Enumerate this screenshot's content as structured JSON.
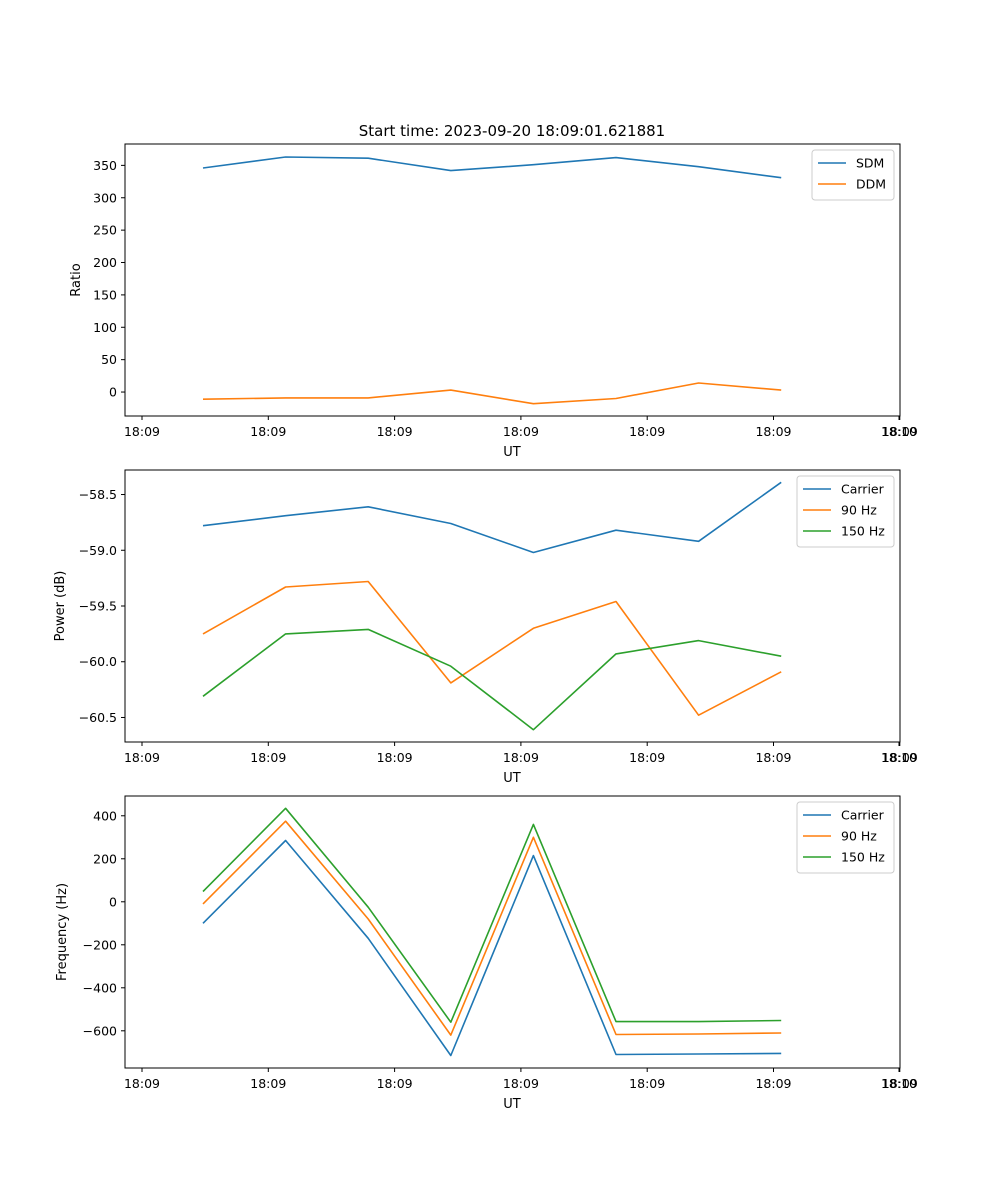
{
  "figure_title": "Start time: 2023-09-20 18:09:01.621881",
  "colors": {
    "blue": "#1f77b4",
    "orange": "#ff7f0e",
    "green": "#2ca02c"
  },
  "chart_data": [
    {
      "type": "line",
      "title": "Start time: 2023-09-20 18:09:01.621881",
      "xlabel": "UT",
      "ylabel": "Ratio",
      "x_tick_labels": [
        "18:09",
        "18:09",
        "18:09",
        "18:09",
        "18:09",
        "18:09",
        "18:09"
      ],
      "x_last_tick_label": "18:10",
      "ylim": [
        -37,
        383
      ],
      "yticks": [
        0,
        50,
        100,
        150,
        200,
        250,
        300,
        350
      ],
      "legend_position": "top-right",
      "series": [
        {
          "name": "SDM",
          "color": "#1f77b4",
          "values": [
            346,
            363,
            361,
            342,
            351,
            362,
            348,
            331
          ]
        },
        {
          "name": "DDM",
          "color": "#ff7f0e",
          "values": [
            -11,
            -9,
            -9,
            3,
            -18,
            -10,
            14,
            3
          ]
        }
      ]
    },
    {
      "type": "line",
      "title": "",
      "xlabel": "UT",
      "ylabel": "Power (dB)",
      "x_tick_labels": [
        "18:09",
        "18:09",
        "18:09",
        "18:09",
        "18:09",
        "18:09",
        "18:09"
      ],
      "x_last_tick_label": "18:10",
      "ylim": [
        -60.72,
        -58.28
      ],
      "yticks": [
        -60.5,
        -60.0,
        -59.5,
        -59.0,
        -58.5
      ],
      "ytick_labels": [
        "−60.5",
        "−60.0",
        "−59.5",
        "−59.0",
        "−58.5"
      ],
      "legend_position": "top-right",
      "series": [
        {
          "name": "Carrier",
          "color": "#1f77b4",
          "values": [
            -58.78,
            -58.69,
            -58.61,
            -58.76,
            -59.02,
            -58.82,
            -58.92,
            -58.39
          ]
        },
        {
          "name": "90 Hz",
          "color": "#ff7f0e",
          "values": [
            -59.75,
            -59.33,
            -59.28,
            -60.19,
            -59.7,
            -59.46,
            -60.48,
            -60.09
          ]
        },
        {
          "name": "150 Hz",
          "color": "#2ca02c",
          "values": [
            -60.31,
            -59.75,
            -59.71,
            -60.04,
            -60.61,
            -59.93,
            -59.81,
            -59.95
          ]
        }
      ]
    },
    {
      "type": "line",
      "title": "",
      "xlabel": "UT",
      "ylabel": "Frequency (Hz)",
      "x_tick_labels": [
        "18:09",
        "18:09",
        "18:09",
        "18:09",
        "18:09",
        "18:09",
        "18:09"
      ],
      "x_last_tick_label": "18:10",
      "ylim": [
        -773,
        492
      ],
      "yticks": [
        -600,
        -400,
        -200,
        0,
        200,
        400
      ],
      "ytick_labels": [
        "−600",
        "−400",
        "−200",
        "0",
        "200",
        "400"
      ],
      "legend_position": "top-right",
      "series": [
        {
          "name": "Carrier",
          "color": "#1f77b4",
          "values": [
            -100,
            285,
            -170,
            -715,
            215,
            -710,
            -708,
            -705
          ]
        },
        {
          "name": "90 Hz",
          "color": "#ff7f0e",
          "values": [
            -10,
            375,
            -80,
            -620,
            300,
            -617,
            -615,
            -610
          ]
        },
        {
          "name": "150 Hz",
          "color": "#2ca02c",
          "values": [
            48,
            435,
            -25,
            -560,
            360,
            -557,
            -557,
            -552
          ]
        }
      ]
    }
  ]
}
